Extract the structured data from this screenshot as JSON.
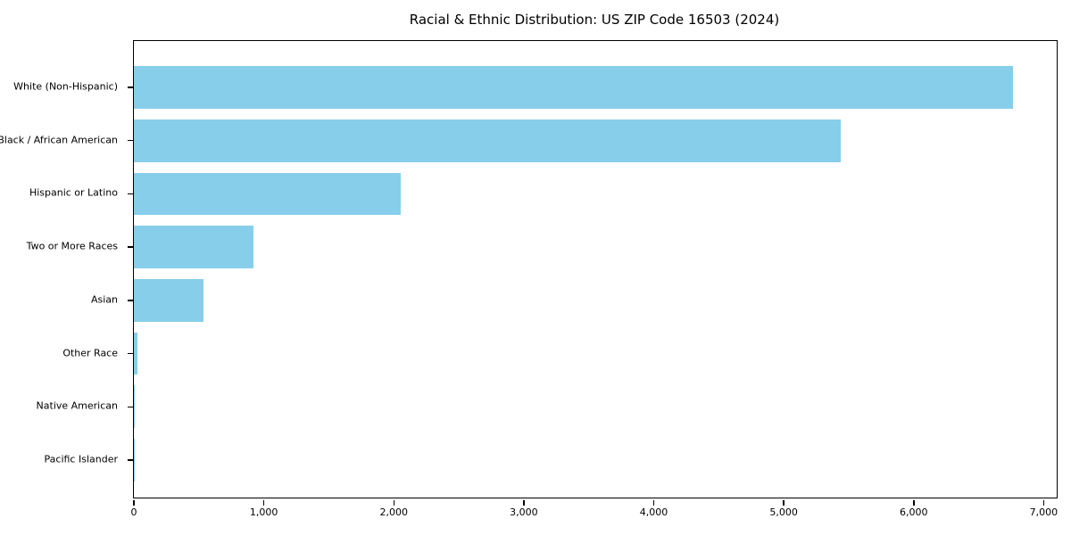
{
  "title": "Racial & Ethnic Distribution: US ZIP Code 16503 (2024)",
  "colors": {
    "bar": "#87CEEB",
    "axis": "#000000",
    "text": "#000000",
    "background": "#FFFFFF"
  },
  "chart_data": {
    "type": "bar",
    "orientation": "horizontal",
    "title": "Racial & Ethnic Distribution: US ZIP Code 16503 (2024)",
    "categories": [
      "White (Non-Hispanic)",
      "Black / African American",
      "Hispanic or Latino",
      "Two or More Races",
      "Asian",
      "Other Race",
      "Native American",
      "Pacific Islander"
    ],
    "values": [
      6765,
      5440,
      2050,
      920,
      535,
      25,
      8,
      2
    ],
    "xlabel": "",
    "ylabel": "",
    "xlim": [
      0,
      7100
    ],
    "xticks": [
      0,
      1000,
      2000,
      3000,
      4000,
      5000,
      6000,
      7000
    ],
    "xtick_labels": [
      "0",
      "1,000",
      "2,000",
      "3,000",
      "4,000",
      "5,000",
      "6,000",
      "7,000"
    ],
    "grid": false,
    "legend": null,
    "bar_color": "#87CEEB",
    "categories_order": "top-to-bottom"
  }
}
